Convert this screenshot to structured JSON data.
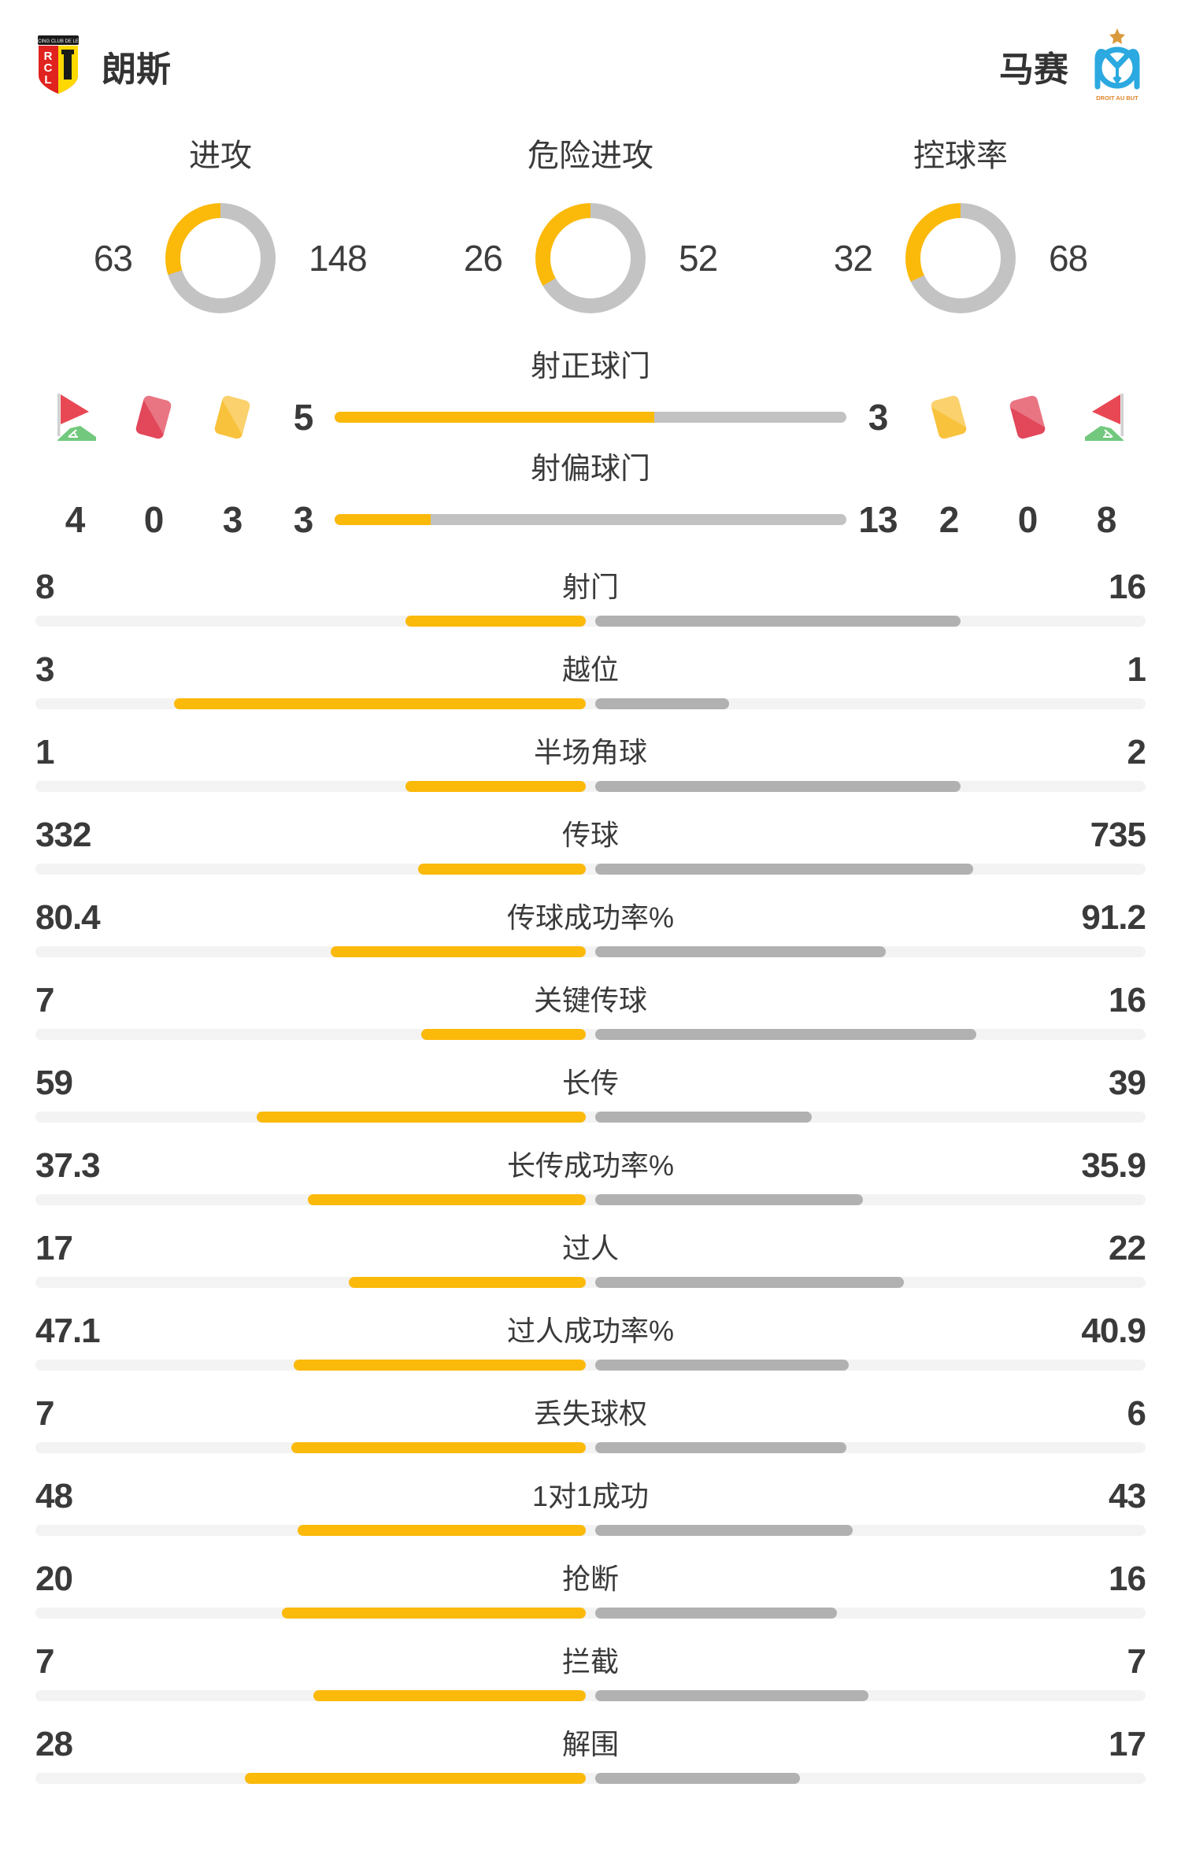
{
  "header": {
    "home_name": "朗斯",
    "away_name": "马赛",
    "home_logo": "lens-crest",
    "away_logo": "marseille-crest",
    "home_logo_banner": "RACING CLUB DE LENS",
    "home_logo_letters": "RCL",
    "away_logo_motto": "DROIT AU BUT"
  },
  "donuts": [
    {
      "title": "进攻",
      "home": 63,
      "away": 148
    },
    {
      "title": "危险进攻",
      "home": 26,
      "away": 52
    },
    {
      "title": "控球率",
      "home": 32,
      "away": 68
    }
  ],
  "shot_rows": [
    {
      "title": "射正球门",
      "home": 5,
      "away": 3
    },
    {
      "title": "射偏球门",
      "home": 3,
      "away": 13
    }
  ],
  "discipline": {
    "home": {
      "corner": 4,
      "red": 0,
      "yellow": 3
    },
    "away": {
      "yellow": 2,
      "red": 0,
      "corner": 8
    }
  },
  "stats": [
    {
      "label": "射门",
      "home": 8,
      "away": 16
    },
    {
      "label": "越位",
      "home": 3,
      "away": 1
    },
    {
      "label": "半场角球",
      "home": 1,
      "away": 2
    },
    {
      "label": "传球",
      "home": 332,
      "away": 735
    },
    {
      "label": "传球成功率%",
      "home": 80.4,
      "away": 91.2
    },
    {
      "label": "关键传球",
      "home": 7,
      "away": 16
    },
    {
      "label": "长传",
      "home": 59,
      "away": 39
    },
    {
      "label": "长传成功率%",
      "home": 37.3,
      "away": 35.9
    },
    {
      "label": "过人",
      "home": 17,
      "away": 22
    },
    {
      "label": "过人成功率%",
      "home": 47.1,
      "away": 40.9
    },
    {
      "label": "丢失球权",
      "home": 7,
      "away": 6
    },
    {
      "label": "1对1成功",
      "home": 48,
      "away": 43
    },
    {
      "label": "抢断",
      "home": 20,
      "away": 16
    },
    {
      "label": "拦截",
      "home": 7,
      "away": 7
    },
    {
      "label": "解围",
      "home": 28,
      "away": 17
    }
  ],
  "chart_data": [
    {
      "type": "pie",
      "title": "进攻",
      "categories": [
        "朗斯",
        "马赛"
      ],
      "values": [
        63,
        148
      ]
    },
    {
      "type": "pie",
      "title": "危险进攻",
      "categories": [
        "朗斯",
        "马赛"
      ],
      "values": [
        26,
        52
      ]
    },
    {
      "type": "pie",
      "title": "控球率",
      "categories": [
        "朗斯",
        "马赛"
      ],
      "values": [
        32,
        68
      ]
    },
    {
      "type": "bar",
      "categories": [
        "射正球门",
        "射偏球门",
        "射门",
        "越位",
        "半场角球",
        "传球",
        "传球成功率%",
        "关键传球",
        "长传",
        "长传成功率%",
        "过人",
        "过人成功率%",
        "丢失球权",
        "1对1成功",
        "抢断",
        "拦截",
        "解围"
      ],
      "series": [
        {
          "name": "朗斯",
          "values": [
            5,
            3,
            8,
            3,
            1,
            332,
            80.4,
            7,
            59,
            37.3,
            17,
            47.1,
            7,
            48,
            20,
            7,
            28
          ]
        },
        {
          "name": "马赛",
          "values": [
            3,
            13,
            16,
            1,
            2,
            735,
            91.2,
            16,
            39,
            35.9,
            22,
            40.9,
            6,
            43,
            16,
            7,
            17
          ]
        }
      ]
    }
  ],
  "colors": {
    "home": "#fbb90a",
    "away_bar": "#b1b1b1",
    "donut_away": "#c3c3c3",
    "shot_gray": "#c2c2c2",
    "track": "#f3f3f3",
    "text": "#3a3a3a",
    "red_card": "#e2475a",
    "yellow_card": "#f9c23c",
    "flag_green": "#72c97e",
    "flag_red": "#e84854",
    "om_blue": "#2ba9e0"
  }
}
